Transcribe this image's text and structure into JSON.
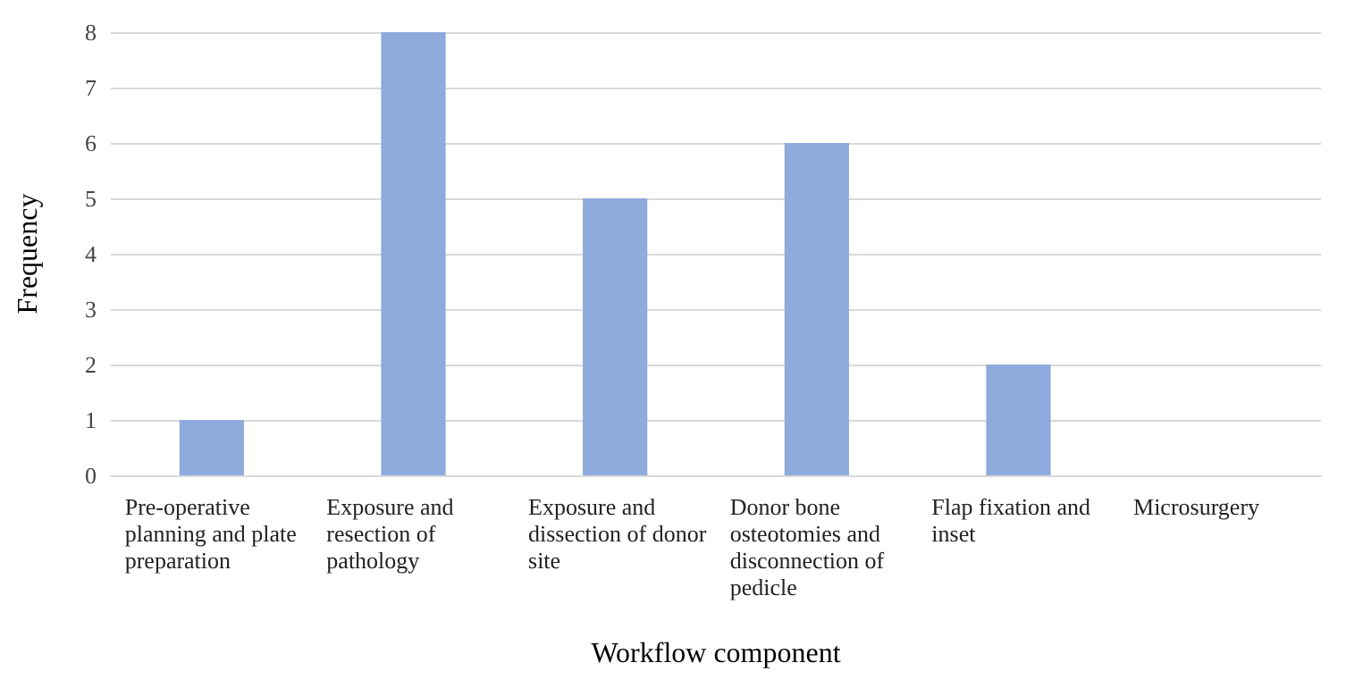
{
  "chart_data": {
    "type": "bar",
    "xlabel": "Workflow component",
    "ylabel": "Frequency",
    "categories": [
      "Pre-operative planning and plate preparation",
      "Exposure and resection of pathology",
      "Exposure and dissection of donor site",
      "Donor bone osteotomies and disconnection of pedicle",
      "Flap fixation and inset",
      "Microsurgery"
    ],
    "values": [
      1,
      8,
      5,
      6,
      2,
      0
    ],
    "color": "#8faadc",
    "ylim": [
      0,
      8
    ],
    "yticks": [
      0,
      1,
      2,
      3,
      4,
      5,
      6,
      7,
      8
    ],
    "grid": "y"
  }
}
